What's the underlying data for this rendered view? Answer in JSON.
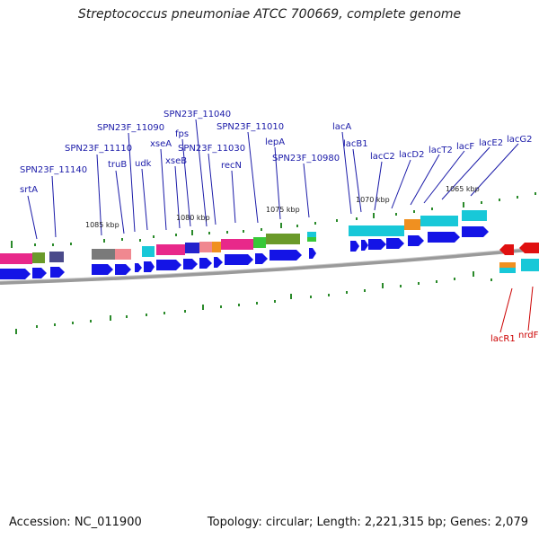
{
  "title": "Streptococcus pneumoniae ATCC 700669, complete genome",
  "accession": "Accession: NC_011900",
  "topology": "Topology: circular; Length: 2,221,315 bp; Genes: 2,079",
  "ticks": [
    "1085 kbp",
    "1080 kbp",
    "1075 kbp",
    "1070 kbp",
    "1065 kbp"
  ],
  "labels": {
    "srtA": "srtA",
    "g11140": "SPN23F_11140",
    "g11110": "SPN23F_11110",
    "truB": "truB",
    "g11090": "SPN23F_11090",
    "udk": "udk",
    "xseA": "xseA",
    "xseB": "xseB",
    "fps": "fps",
    "g11040": "SPN23F_11040",
    "g11030": "SPN23F_11030",
    "recN": "recN",
    "g11010": "SPN23F_11010",
    "lepA": "lepA",
    "g10980": "SPN23F_10980",
    "lacA": "lacA",
    "lacB1": "lacB1",
    "lacC2": "lacC2",
    "lacD2": "lacD2",
    "lacT2": "lacT2",
    "lacF": "lacF",
    "lacE2": "lacE2",
    "lacG2": "lacG2",
    "lacR1": "lacR1",
    "nrdF": "nrdF"
  },
  "colors": {
    "cds": "#1414e6",
    "backbone": "#888888",
    "label": "#1a1aa8",
    "label_alt": "#cc0000",
    "gc_tick": "#2a8a2a"
  }
}
